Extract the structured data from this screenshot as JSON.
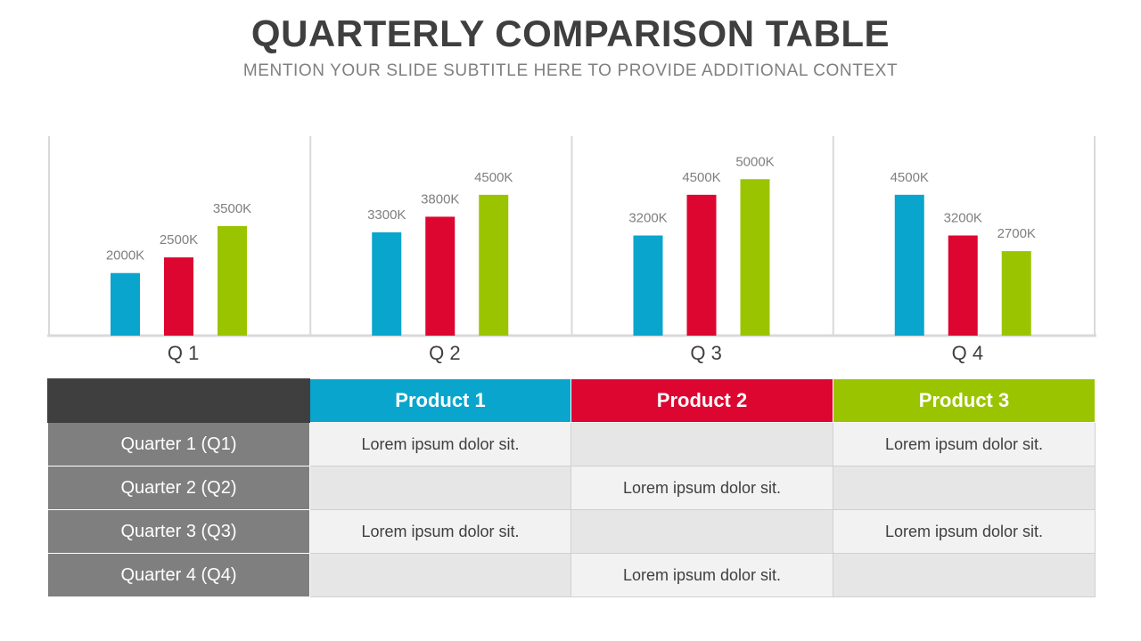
{
  "header": {
    "title": "QUARTERLY COMPARISON TABLE",
    "subtitle": "MENTION YOUR SLIDE SUBTITLE HERE TO PROVIDE ADDITIONAL CONTEXT"
  },
  "colors": {
    "product1": "#0aa5cc",
    "product2": "#dc0630",
    "product3": "#9bc400",
    "header_dark": "#3f3f3f",
    "row_header": "#7f7f7f"
  },
  "chart_data": {
    "type": "bar",
    "categories": [
      "Q 1",
      "Q 2",
      "Q 3",
      "Q 4"
    ],
    "series": [
      {
        "name": "Product 1",
        "values": [
          2000,
          3300,
          3200,
          4500
        ],
        "labels": [
          "2000K",
          "3300K",
          "3200K",
          "4500K"
        ]
      },
      {
        "name": "Product 2",
        "values": [
          2500,
          3800,
          4500,
          3200
        ],
        "labels": [
          "2500K",
          "3800K",
          "4500K",
          "3200K"
        ]
      },
      {
        "name": "Product 3",
        "values": [
          3500,
          4500,
          5000,
          2700
        ],
        "labels": [
          "3500K",
          "4500K",
          "5000K",
          "2700K"
        ]
      }
    ],
    "ylim": [
      0,
      6000
    ],
    "grid": false
  },
  "table": {
    "corner": "",
    "columns": [
      "Product 1",
      "Product 2",
      "Product 3"
    ],
    "rows": [
      {
        "label": "Quarter 1 (Q1)",
        "cells": [
          "Lorem ipsum dolor sit.",
          "",
          "Lorem ipsum dolor sit."
        ]
      },
      {
        "label": "Quarter 2 (Q2)",
        "cells": [
          "",
          "Lorem ipsum dolor sit.",
          ""
        ]
      },
      {
        "label": "Quarter 3 (Q3)",
        "cells": [
          "Lorem ipsum dolor sit.",
          "",
          "Lorem ipsum dolor sit."
        ]
      },
      {
        "label": "Quarter 4 (Q4)",
        "cells": [
          "",
          "Lorem ipsum dolor sit.",
          ""
        ]
      }
    ]
  }
}
